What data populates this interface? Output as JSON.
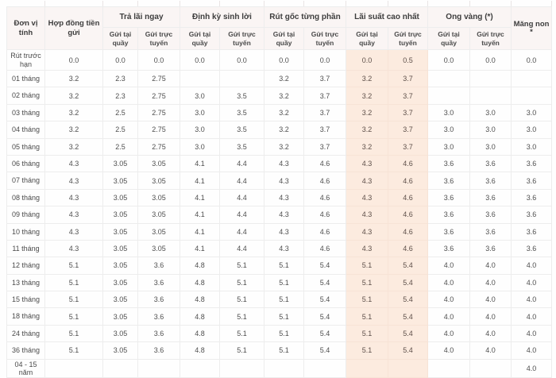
{
  "table": {
    "header": {
      "unit": "Đơn vị tính",
      "contract": "Hợp đồng tiền gửi",
      "groups": [
        {
          "label": "Trả lãi ngay"
        },
        {
          "label": "Định kỳ sinh lời"
        },
        {
          "label": "Rút gốc từng phần"
        },
        {
          "label": "Lãi suất cao nhất"
        },
        {
          "label": "Ong vàng (*)"
        }
      ],
      "sub_counter": "Gửi tại quầy",
      "sub_online": "Gửi trực tuyến",
      "last": "Măng non",
      "last_sub": "*"
    },
    "highlight_value_columns": [
      7,
      8
    ],
    "rows": [
      {
        "label": "Rút trước hạn",
        "values": [
          "0.0",
          "0.0",
          "0.0",
          "0.0",
          "0.0",
          "0.0",
          "0.0",
          "0.0",
          "0.5",
          "0.0",
          "0.0",
          "0.0"
        ]
      },
      {
        "label": "01 tháng",
        "values": [
          "3.2",
          "2.3",
          "2.75",
          "",
          "",
          "3.2",
          "3.7",
          "3.2",
          "3.7",
          "",
          "",
          ""
        ]
      },
      {
        "label": "02 tháng",
        "values": [
          "3.2",
          "2.3",
          "2.75",
          "3.0",
          "3.5",
          "3.2",
          "3.7",
          "3.2",
          "3.7",
          "",
          "",
          ""
        ]
      },
      {
        "label": "03 tháng",
        "values": [
          "3.2",
          "2.5",
          "2.75",
          "3.0",
          "3.5",
          "3.2",
          "3.7",
          "3.2",
          "3.7",
          "3.0",
          "3.0",
          "3.0"
        ]
      },
      {
        "label": "04 tháng",
        "values": [
          "3.2",
          "2.5",
          "2.75",
          "3.0",
          "3.5",
          "3.2",
          "3.7",
          "3.2",
          "3.7",
          "3.0",
          "3.0",
          "3.0"
        ]
      },
      {
        "label": "05 tháng",
        "values": [
          "3.2",
          "2.5",
          "2.75",
          "3.0",
          "3.5",
          "3.2",
          "3.7",
          "3.2",
          "3.7",
          "3.0",
          "3.0",
          "3.0"
        ]
      },
      {
        "label": "06 tháng",
        "values": [
          "4.3",
          "3.05",
          "3.05",
          "4.1",
          "4.4",
          "4.3",
          "4.6",
          "4.3",
          "4.6",
          "3.6",
          "3.6",
          "3.6"
        ]
      },
      {
        "label": "07 tháng",
        "values": [
          "4.3",
          "3.05",
          "3.05",
          "4.1",
          "4.4",
          "4.3",
          "4.6",
          "4.3",
          "4.6",
          "3.6",
          "3.6",
          "3.6"
        ]
      },
      {
        "label": "08 tháng",
        "values": [
          "4.3",
          "3.05",
          "3.05",
          "4.1",
          "4.4",
          "4.3",
          "4.6",
          "4.3",
          "4.6",
          "3.6",
          "3.6",
          "3.6"
        ]
      },
      {
        "label": "09 tháng",
        "values": [
          "4.3",
          "3.05",
          "3.05",
          "4.1",
          "4.4",
          "4.3",
          "4.6",
          "4.3",
          "4.6",
          "3.6",
          "3.6",
          "3.6"
        ]
      },
      {
        "label": "10 tháng",
        "values": [
          "4.3",
          "3.05",
          "3.05",
          "4.1",
          "4.4",
          "4.3",
          "4.6",
          "4.3",
          "4.6",
          "3.6",
          "3.6",
          "3.6"
        ]
      },
      {
        "label": "11 tháng",
        "values": [
          "4.3",
          "3.05",
          "3.05",
          "4.1",
          "4.4",
          "4.3",
          "4.6",
          "4.3",
          "4.6",
          "3.6",
          "3.6",
          "3.6"
        ]
      },
      {
        "label": "12 tháng",
        "values": [
          "5.1",
          "3.05",
          "3.6",
          "4.8",
          "5.1",
          "5.1",
          "5.4",
          "5.1",
          "5.4",
          "4.0",
          "4.0",
          "4.0"
        ]
      },
      {
        "label": "13 tháng",
        "values": [
          "5.1",
          "3.05",
          "3.6",
          "4.8",
          "5.1",
          "5.1",
          "5.4",
          "5.1",
          "5.4",
          "4.0",
          "4.0",
          "4.0"
        ]
      },
      {
        "label": "15 tháng",
        "values": [
          "5.1",
          "3.05",
          "3.6",
          "4.8",
          "5.1",
          "5.1",
          "5.4",
          "5.1",
          "5.4",
          "4.0",
          "4.0",
          "4.0"
        ]
      },
      {
        "label": "18 tháng",
        "values": [
          "5.1",
          "3.05",
          "3.6",
          "4.8",
          "5.1",
          "5.1",
          "5.4",
          "5.1",
          "5.4",
          "4.0",
          "4.0",
          "4.0"
        ]
      },
      {
        "label": "24 tháng",
        "values": [
          "5.1",
          "3.05",
          "3.6",
          "4.8",
          "5.1",
          "5.1",
          "5.4",
          "5.1",
          "5.4",
          "4.0",
          "4.0",
          "4.0"
        ]
      },
      {
        "label": "36 tháng",
        "values": [
          "5.1",
          "3.05",
          "3.6",
          "4.8",
          "5.1",
          "5.1",
          "5.4",
          "5.1",
          "5.4",
          "4.0",
          "4.0",
          "4.0"
        ]
      },
      {
        "label": "04 - 15 năm",
        "values": [
          "",
          "",
          "",
          "",
          "",
          "",
          "",
          "",
          "",
          "",
          "",
          "4.0"
        ]
      }
    ]
  },
  "colors": {
    "header_bg": "#faf5f4",
    "highlight_bg": "#fcebdf",
    "border": "#ededed",
    "text": "#4f4f4f"
  }
}
